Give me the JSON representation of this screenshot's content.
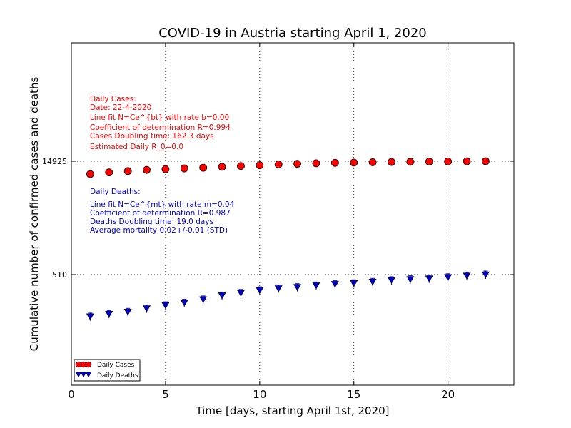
{
  "chart_data": {
    "type": "scatter",
    "title": "COVID-19 in Austria starting April 1, 2020",
    "xlabel": "Time [days, starting April 1st, 2020]",
    "ylabel": "Cumulative number of confirmed cases and deaths",
    "xlim": [
      0,
      23.5
    ],
    "xticks": [
      0,
      5,
      10,
      15,
      20
    ],
    "ytick_labels": [
      "14925",
      "510"
    ],
    "grid": true,
    "legend_position": "lower-left",
    "series": [
      {
        "name": "Daily Cases",
        "color": "#ff0000",
        "marker": "circle",
        "x": [
          1,
          2,
          3,
          4,
          5,
          6,
          7,
          8,
          9,
          10,
          11,
          12,
          13,
          14,
          15,
          16,
          17,
          18,
          19,
          20,
          21,
          22
        ],
        "y": [
          10182,
          10711,
          11129,
          11524,
          11781,
          12051,
          12297,
          12639,
          12942,
          13244,
          13555,
          13806,
          14041,
          14226,
          14336,
          14476,
          14595,
          14671,
          14749,
          14795,
          14873,
          14925
        ]
      },
      {
        "name": "Daily Deaths",
        "color": "#0000cc",
        "marker": "triangle-down",
        "x": [
          1,
          2,
          3,
          4,
          5,
          6,
          7,
          8,
          9,
          10,
          11,
          12,
          13,
          14,
          15,
          16,
          17,
          18,
          19,
          20,
          21,
          22
        ],
        "y": [
          146,
          158,
          168,
          186,
          204,
          220,
          243,
          273,
          295,
          319,
          337,
          350,
          368,
          384,
          393,
          410,
          431,
          443,
          452,
          470,
          491,
          510
        ]
      }
    ],
    "annotations": {
      "cases": [
        "Daily Cases:",
        "Date: 22-4-2020",
        "Line fit N=Ce^{bt} with rate b=0.00",
        "Coefficient of determination R=0.994",
        "Cases Doubling time: 162.3 days",
        "Estimated Daily R_0=0.0"
      ],
      "deaths": [
        "Daily Deaths:",
        "Line fit N=Ce^{mt} with rate m=0.04",
        "Coefficient of determination R=0.987",
        "Deaths Doubling time: 19.0 days",
        "Average mortality 0.02+/-0.01 (STD)"
      ]
    }
  }
}
